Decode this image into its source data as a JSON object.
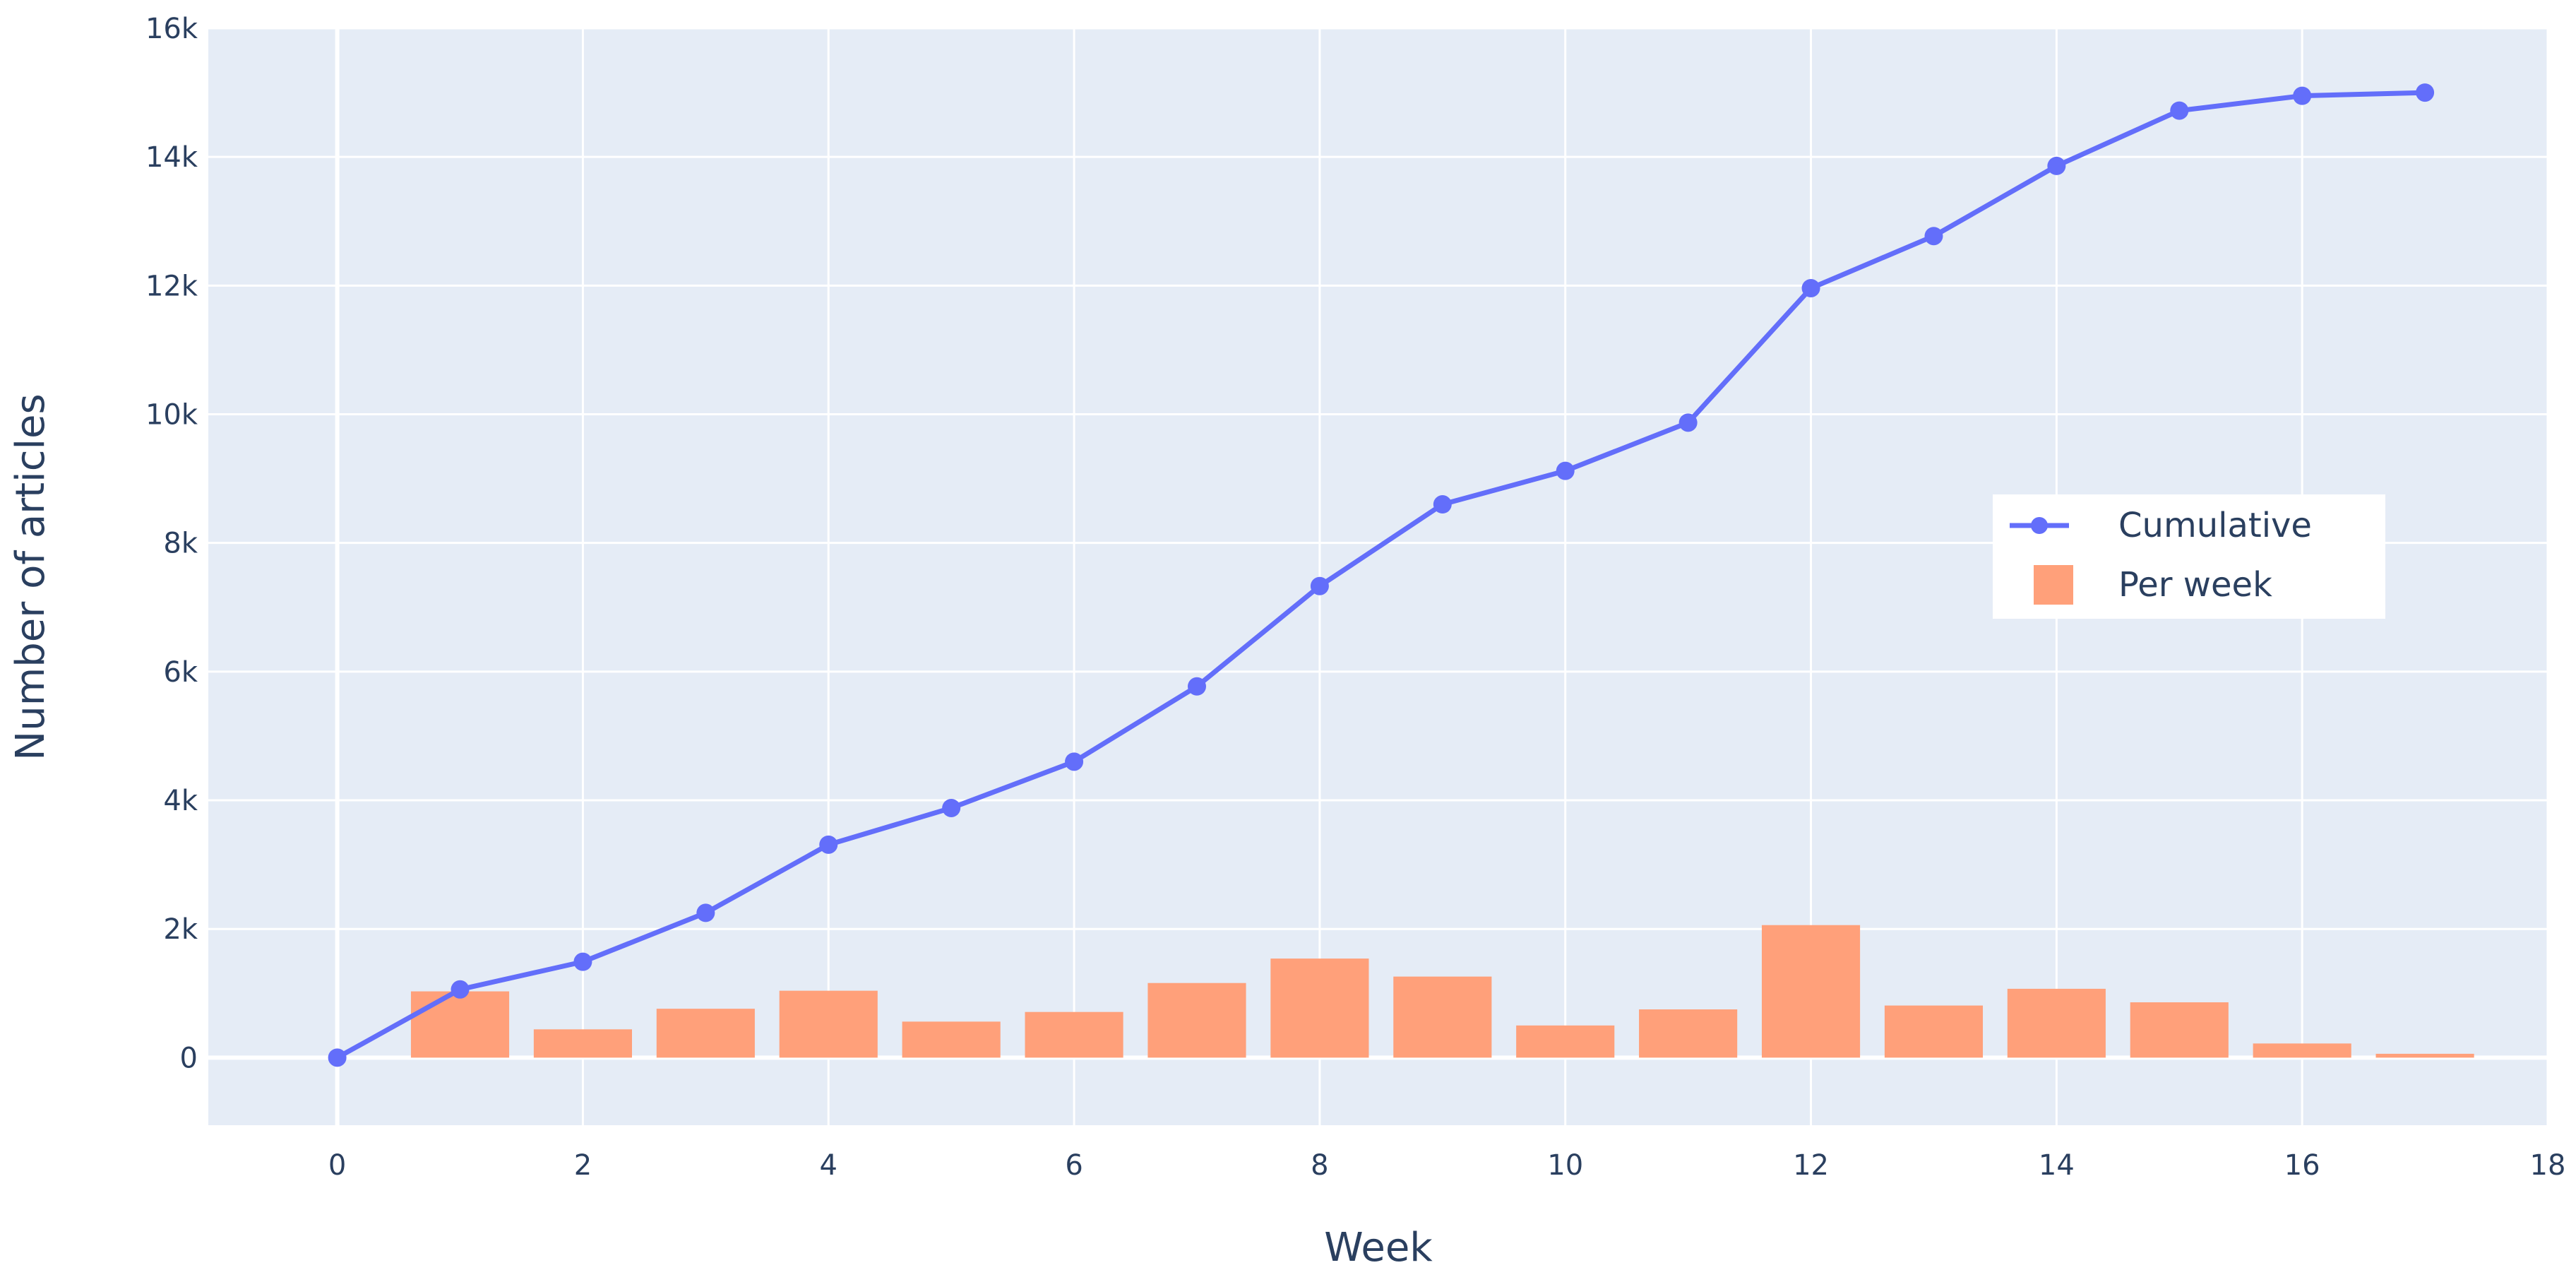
{
  "chart_data": {
    "type": "bar",
    "title": "",
    "xlabel": "Week",
    "ylabel": "Number of articles",
    "xlim": [
      -1.05,
      18.0
    ],
    "ylim": [
      -1050,
      16000
    ],
    "x_ticks": [
      0,
      2,
      4,
      6,
      8,
      10,
      12,
      14,
      16,
      18
    ],
    "x_tick_labels": [
      "0",
      "2",
      "4",
      "6",
      "8",
      "10",
      "12",
      "14",
      "16",
      "18"
    ],
    "y_ticks": [
      0,
      2000,
      4000,
      6000,
      8000,
      10000,
      12000,
      14000,
      16000
    ],
    "y_tick_labels": [
      "0",
      "2k",
      "4k",
      "6k",
      "8k",
      "10k",
      "12k",
      "14k",
      "16k"
    ],
    "grid": true,
    "legend_position": "right",
    "colors": {
      "plot_background": "#E5ECF6",
      "grid": "#FFFFFF",
      "cumulative": "#636EFA",
      "per_week": "#FFA07A",
      "text": "#2a3f5f"
    },
    "series": [
      {
        "name": "Per week",
        "type": "bar",
        "x": [
          1,
          2,
          3,
          4,
          5,
          6,
          7,
          8,
          9,
          10,
          11,
          12,
          13,
          14,
          15,
          16,
          17
        ],
        "values": [
          1030,
          440,
          760,
          1040,
          560,
          710,
          1160,
          1540,
          1260,
          500,
          750,
          2060,
          810,
          1070,
          860,
          220,
          60
        ]
      },
      {
        "name": "Cumulative",
        "type": "line",
        "x": [
          0,
          1,
          2,
          3,
          4,
          5,
          6,
          7,
          8,
          9,
          10,
          11,
          12,
          13,
          14,
          15,
          16,
          17
        ],
        "values": [
          0,
          1060,
          1490,
          2250,
          3310,
          3880,
          4600,
          5770,
          7330,
          8600,
          9120,
          9870,
          11960,
          12770,
          13860,
          14720,
          14950,
          15000
        ]
      }
    ]
  }
}
